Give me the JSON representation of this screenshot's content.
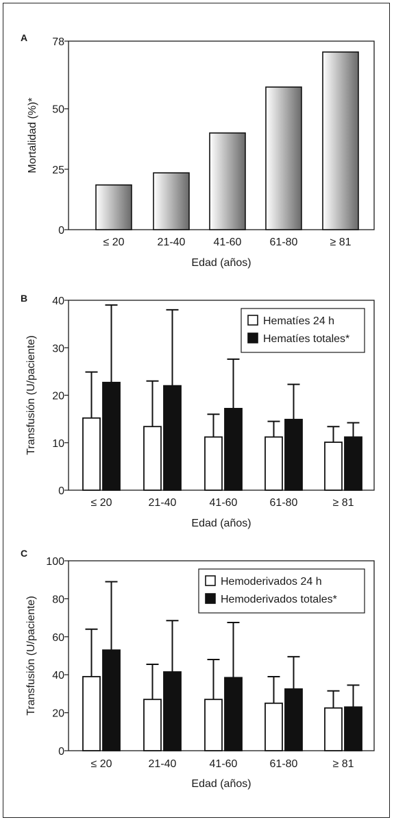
{
  "chart_data": [
    {
      "panel": "A",
      "type": "bar",
      "categories": [
        "≤ 20",
        "21-40",
        "41-60",
        "61-80",
        "≥ 81"
      ],
      "values": [
        18.5,
        23.5,
        40,
        59,
        73.5
      ],
      "xlabel": "Edad (años)",
      "ylabel": "Mortalidad (%)*",
      "ylim": [
        0,
        78
      ],
      "yticks": [
        "0",
        "25",
        "50",
        "78"
      ],
      "grid": false,
      "colors": {
        "bar_light": "#ffffff",
        "bar_dark": "#6a6a6a"
      }
    },
    {
      "panel": "B",
      "type": "bar",
      "categories": [
        "≤ 20",
        "21-40",
        "41-60",
        "61-80",
        "≥ 81"
      ],
      "series": [
        {
          "name": "Hematíes 24 h",
          "values": [
            15.2,
            13.4,
            11.2,
            11.2,
            10.1
          ],
          "errors": [
            24.9,
            23,
            16,
            14.5,
            13.4
          ],
          "color": "#ffffff"
        },
        {
          "name": "Hematíes totales*",
          "values": [
            22.7,
            22,
            17.2,
            14.9,
            11.2
          ],
          "errors": [
            39,
            38,
            27.6,
            22.3,
            14.2
          ],
          "color": "#111111"
        }
      ],
      "xlabel": "Edad (años)",
      "ylabel": "Transfusión (U/paciente)",
      "ylim": [
        0,
        40
      ],
      "yticks": [
        "0",
        "10",
        "20",
        "30",
        "40"
      ],
      "legend_position": "top-right",
      "grid": false
    },
    {
      "panel": "C",
      "type": "bar",
      "categories": [
        "≤ 20",
        "21-40",
        "41-60",
        "61-80",
        "≥ 81"
      ],
      "series": [
        {
          "name": "Hemoderivados 24 h",
          "values": [
            39,
            27,
            27,
            25,
            22.5
          ],
          "errors": [
            64,
            45.5,
            48,
            39,
            31.5
          ],
          "color": "#ffffff"
        },
        {
          "name": "Hemoderivados totales*",
          "values": [
            53,
            41.5,
            38.5,
            32.5,
            23
          ],
          "errors": [
            89,
            68.5,
            67.5,
            49.5,
            34.5
          ],
          "color": "#111111"
        }
      ],
      "xlabel": "Edad (años)",
      "ylabel": "Transfusión (U/paciente)",
      "ylim": [
        0,
        100
      ],
      "yticks": [
        "0",
        "20",
        "40",
        "60",
        "80",
        "100"
      ],
      "legend_position": "top-right",
      "grid": false
    }
  ]
}
